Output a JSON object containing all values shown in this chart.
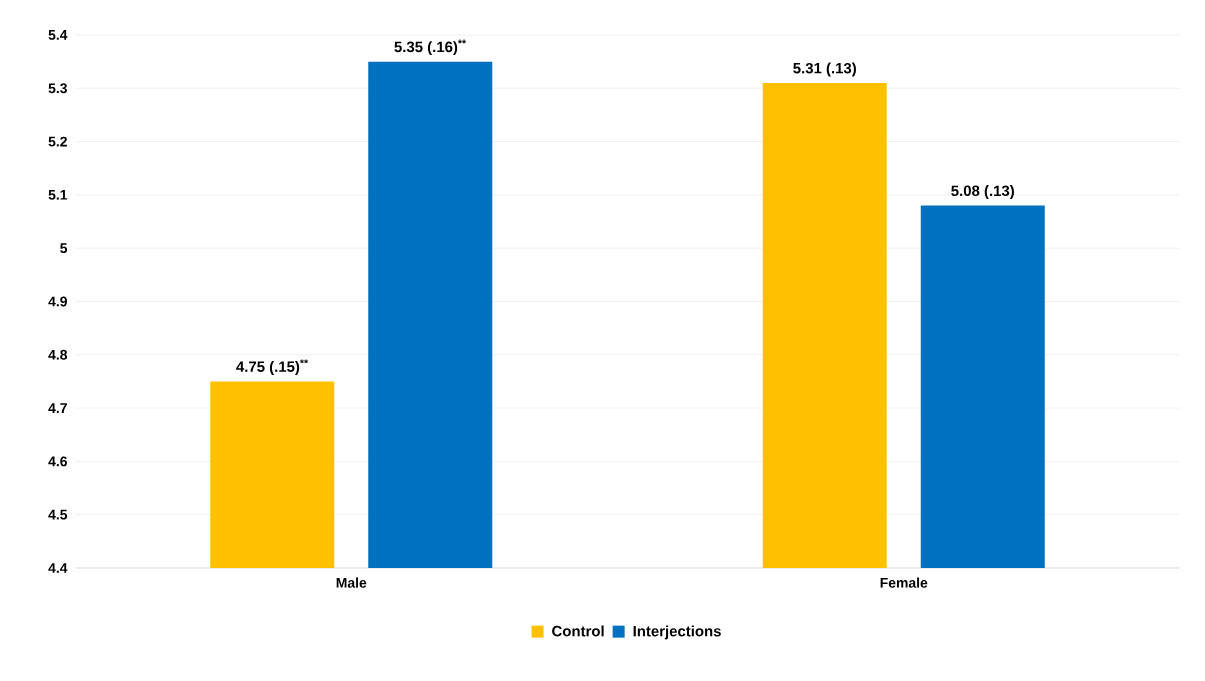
{
  "chart_data": {
    "type": "bar",
    "categories": [
      "Male",
      "Female"
    ],
    "series": [
      {
        "name": "Control",
        "color": "#ffc000",
        "values": [
          4.75,
          5.31
        ],
        "value_labels": [
          "4.75 (.15)$^{**}$",
          "5.31 (.13)"
        ]
      },
      {
        "name": "Interjections",
        "color": "#0070c0",
        "values": [
          5.35,
          5.08
        ],
        "value_labels": [
          "5.35 (.16)$^{**}$",
          "5.08 (.13)"
        ]
      }
    ],
    "ylim": [
      4.4,
      5.4
    ],
    "yticks": [
      4.4,
      4.5,
      4.6,
      4.7,
      4.8,
      4.9,
      5,
      5.1,
      5.2,
      5.3,
      5.4
    ],
    "grid": "y",
    "legend": "bottom"
  }
}
